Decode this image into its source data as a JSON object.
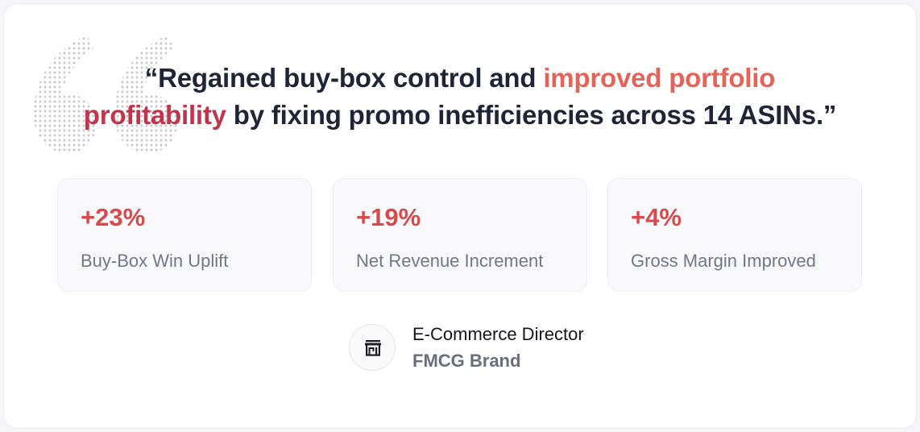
{
  "testimonial": {
    "quote_open": "“Regained buy-box control and ",
    "quote_highlight_1": "improved portfolio",
    "quote_highlight_2": "profitability",
    "quote_close": " by fixing promo inefficiencies across 14 ASINs.”"
  },
  "stats": [
    {
      "value": "+23%",
      "label": "Buy-Box Win Uplift"
    },
    {
      "value": "+19%",
      "label": "Net Revenue Increment"
    },
    {
      "value": "+4%",
      "label": "Gross Margin Improved"
    }
  ],
  "author": {
    "icon": "store-icon",
    "role": "E-Commerce Director",
    "organization": "FMCG Brand"
  },
  "colors": {
    "highlight_primary": "#e5645a",
    "highlight_secondary": "#c2344a",
    "stat_value": "#d84a4c",
    "quote_text": "#1f2537"
  }
}
